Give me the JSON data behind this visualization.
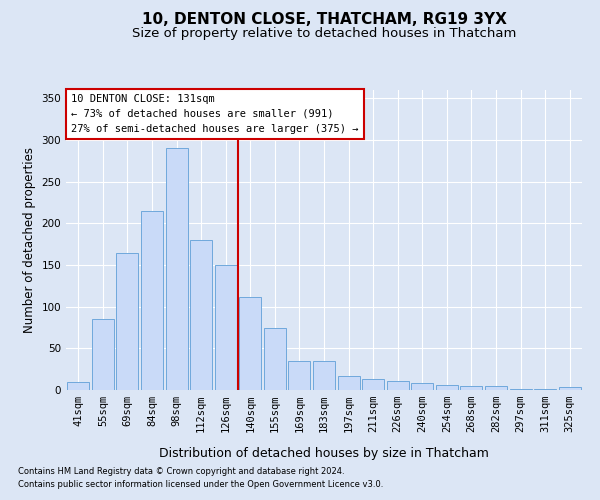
{
  "title": "10, DENTON CLOSE, THATCHAM, RG19 3YX",
  "subtitle": "Size of property relative to detached houses in Thatcham",
  "xlabel": "Distribution of detached houses by size in Thatcham",
  "ylabel": "Number of detached properties",
  "footnote1": "Contains HM Land Registry data © Crown copyright and database right 2024.",
  "footnote2": "Contains public sector information licensed under the Open Government Licence v3.0.",
  "categories": [
    "41sqm",
    "55sqm",
    "69sqm",
    "84sqm",
    "98sqm",
    "112sqm",
    "126sqm",
    "140sqm",
    "155sqm",
    "169sqm",
    "183sqm",
    "197sqm",
    "211sqm",
    "226sqm",
    "240sqm",
    "254sqm",
    "268sqm",
    "282sqm",
    "297sqm",
    "311sqm",
    "325sqm"
  ],
  "values": [
    10,
    85,
    165,
    215,
    290,
    180,
    150,
    112,
    75,
    35,
    35,
    17,
    13,
    11,
    9,
    6,
    5,
    5,
    1,
    1,
    4
  ],
  "bar_color": "#c9daf8",
  "bar_edge_color": "#6fa8dc",
  "vline_index": 6.5,
  "vline_color": "#cc0000",
  "annotation_line1": "10 DENTON CLOSE: 131sqm",
  "annotation_line2": "← 73% of detached houses are smaller (991)",
  "annotation_line3": "27% of semi-detached houses are larger (375) →",
  "annotation_box_facecolor": "#ffffff",
  "annotation_box_edgecolor": "#cc0000",
  "ylim": [
    0,
    360
  ],
  "yticks": [
    0,
    50,
    100,
    150,
    200,
    250,
    300,
    350
  ],
  "fig_bg_color": "#dce6f5",
  "plot_bg_color": "#dce6f5",
  "grid_color": "#ffffff",
  "title_fontsize": 11,
  "subtitle_fontsize": 9.5,
  "xlabel_fontsize": 9,
  "ylabel_fontsize": 8.5,
  "tick_fontsize": 7.5,
  "annotation_fontsize": 7.5,
  "footnote_fontsize": 6
}
